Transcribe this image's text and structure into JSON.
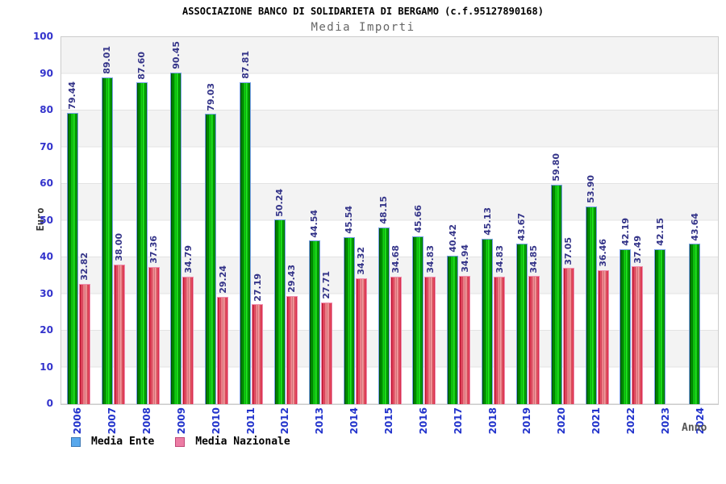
{
  "chart_data": {
    "type": "bar",
    "title": "ASSOCIAZIONE BANCO DI SOLIDARIETA DI BERGAMO (c.f.95127890168)",
    "subtitle": "Media Importi",
    "xlabel": "Anno",
    "ylabel": "Euro",
    "ylim": [
      0,
      100
    ],
    "ytick_step": 10,
    "grid": "alternating horizontal bands every 10 units",
    "legend_position": "bottom-left",
    "categories": [
      "2006",
      "2007",
      "2008",
      "2009",
      "2010",
      "2011",
      "2012",
      "2013",
      "2014",
      "2015",
      "2016",
      "2017",
      "2018",
      "2019",
      "2020",
      "2021",
      "2022",
      "2023",
      "2024"
    ],
    "series": [
      {
        "id": "media-ente",
        "name": "Media Ente",
        "css": "green",
        "color": "#00cc00",
        "values": [
          79.44,
          89.01,
          87.6,
          90.45,
          79.03,
          87.81,
          50.24,
          44.54,
          45.54,
          48.15,
          45.66,
          40.42,
          45.13,
          43.67,
          59.8,
          53.9,
          42.19,
          42.15,
          43.64
        ]
      },
      {
        "id": "media-nazionale",
        "name": "Media Nazionale",
        "css": "red",
        "color": "#ee4466",
        "values": [
          32.82,
          38.0,
          37.36,
          34.79,
          29.24,
          27.19,
          29.43,
          27.71,
          34.32,
          34.68,
          34.83,
          34.94,
          34.83,
          34.85,
          37.05,
          36.46,
          37.49,
          null,
          null
        ]
      }
    ],
    "legend": {
      "items": [
        {
          "label": "Media Ente",
          "swatch_fill": "#58a8ec",
          "swatch_border": "#3c78b4"
        },
        {
          "label": "Media Nazionale",
          "swatch_fill": "#ec7ca4",
          "swatch_border": "#c04878"
        }
      ]
    },
    "colors": {
      "tick_label": "#3333cc",
      "value_label": "#333388",
      "year_label": "#2233cc",
      "subtitle": "#666666",
      "band_gray": "#f3f3f3",
      "plot_border": "#cccccc"
    }
  }
}
